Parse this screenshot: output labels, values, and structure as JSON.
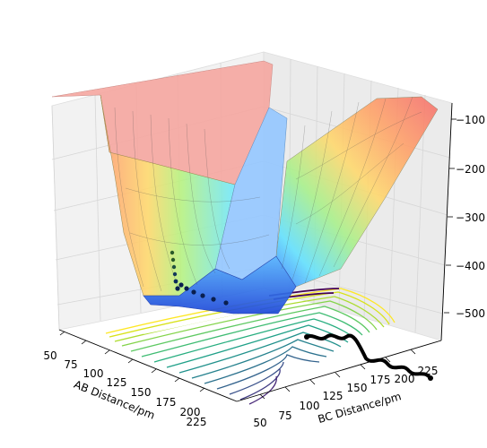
{
  "chart_data": {
    "type": "surface-3d",
    "xlabel": "AB Distance/pm",
    "ylabel": "BC Distance/pm",
    "zlabel": "",
    "x_ticks": [
      "50",
      "75",
      "100",
      "125",
      "150",
      "175",
      "200",
      "225"
    ],
    "y_ticks": [
      "50",
      "75",
      "100",
      "125",
      "150",
      "175",
      "200",
      "225"
    ],
    "z_ticks": [
      "−500",
      "−400",
      "−300",
      "−200",
      "−100"
    ],
    "xlim": [
      50,
      240
    ],
    "ylim": [
      50,
      240
    ],
    "zlim": [
      -550,
      -60
    ],
    "grid": true,
    "colormap_surface": "jet",
    "colormap_contour": "viridis",
    "trajectory_color": "#000000",
    "series": [
      {
        "type": "trajectory",
        "points": [
          {
            "x": 60,
            "y": 120,
            "z": -420
          },
          {
            "x": 70,
            "y": 115,
            "z": -430
          },
          {
            "x": 80,
            "y": 110,
            "z": -440
          },
          {
            "x": 95,
            "y": 100,
            "z": -455
          },
          {
            "x": 110,
            "y": 92,
            "z": -462
          },
          {
            "x": 130,
            "y": 85,
            "z": -460
          },
          {
            "x": 160,
            "y": 80,
            "z": -455
          },
          {
            "x": 190,
            "y": 76,
            "z": -450
          },
          {
            "x": 225,
            "y": 74,
            "z": -448
          }
        ]
      }
    ]
  }
}
